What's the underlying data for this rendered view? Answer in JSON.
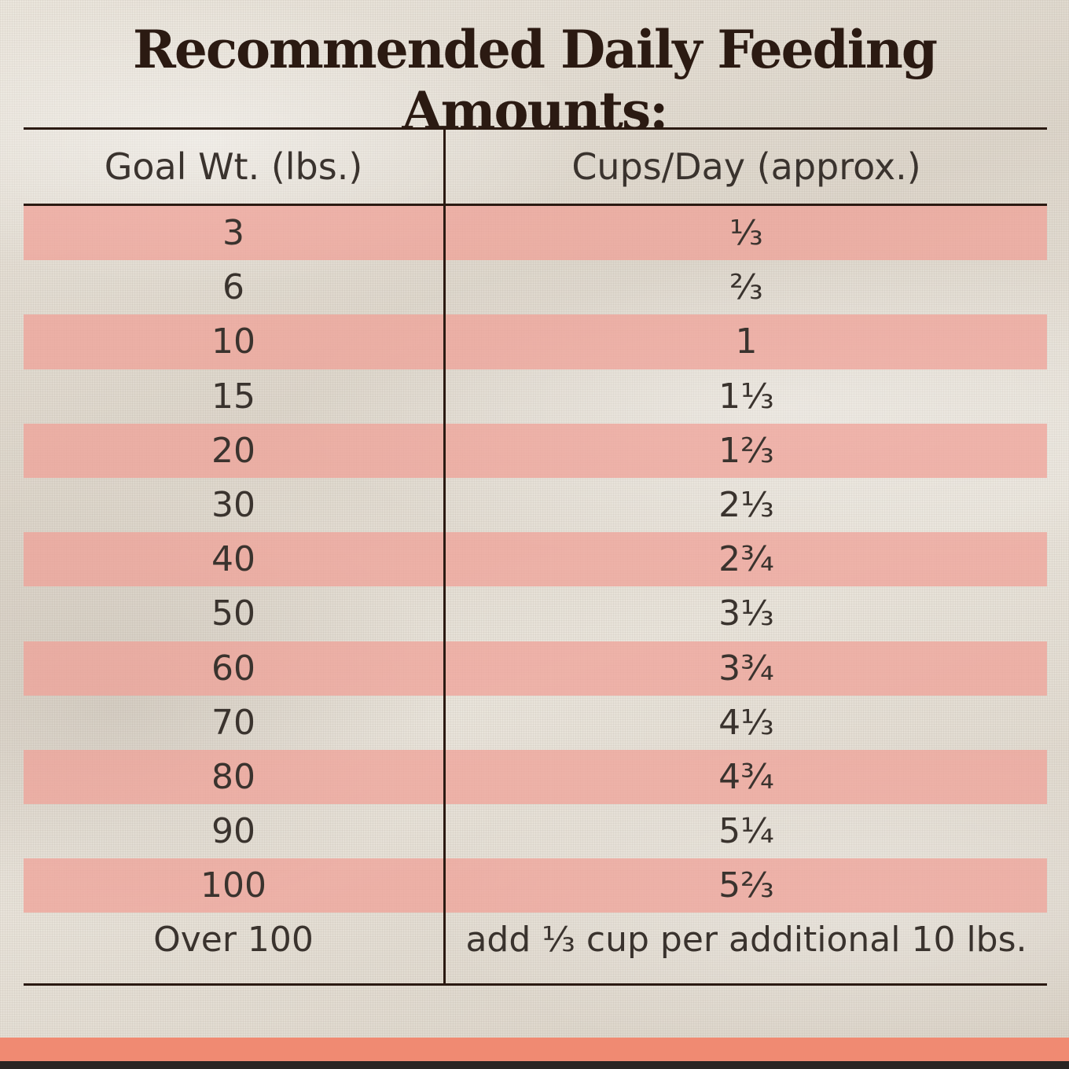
{
  "title": "Recommended Daily Feeding Amounts:",
  "table": {
    "headers": [
      "Goal Wt. (lbs.)",
      "Cups/Day (approx.)"
    ],
    "rows": [
      {
        "weight": "3",
        "cups": "⅓"
      },
      {
        "weight": "6",
        "cups": "⅔"
      },
      {
        "weight": "10",
        "cups": "1"
      },
      {
        "weight": "15",
        "cups": "1⅓"
      },
      {
        "weight": "20",
        "cups": "1⅔"
      },
      {
        "weight": "30",
        "cups": "2⅓"
      },
      {
        "weight": "40",
        "cups": "2¾"
      },
      {
        "weight": "50",
        "cups": "3⅓"
      },
      {
        "weight": "60",
        "cups": "3¾"
      },
      {
        "weight": "70",
        "cups": "4⅓"
      },
      {
        "weight": "80",
        "cups": "4¾"
      },
      {
        "weight": "90",
        "cups": "5¼"
      },
      {
        "weight": "100",
        "cups": "5⅔"
      },
      {
        "weight": "Over 100",
        "cups": "add ⅓ cup per additional 10 lbs."
      }
    ]
  },
  "colors": {
    "stripe": "#f0a096",
    "rule": "#2b1a12",
    "footer_band": "#f08a72"
  }
}
